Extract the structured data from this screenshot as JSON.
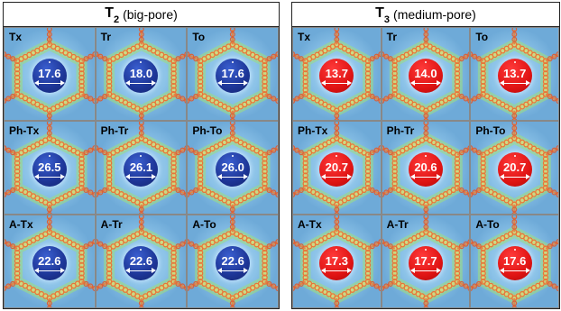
{
  "panels": [
    {
      "title": "T",
      "subscript": "2",
      "description": "(big-pore)",
      "color": "#1d3596",
      "cells": [
        {
          "label": "Tx",
          "value": "17.6"
        },
        {
          "label": "Tr",
          "value": "18.0"
        },
        {
          "label": "To",
          "value": "17.6"
        },
        {
          "label": "Ph-Tx",
          "value": "26.5"
        },
        {
          "label": "Ph-Tr",
          "value": "26.1"
        },
        {
          "label": "Ph-To",
          "value": "26.0"
        },
        {
          "label": "A-Tx",
          "value": "22.6"
        },
        {
          "label": "A-Tr",
          "value": "22.6"
        },
        {
          "label": "A-To",
          "value": "22.6"
        }
      ]
    },
    {
      "title": "T",
      "subscript": "3",
      "description": "(medium-pore)",
      "color": "#e01414",
      "cells": [
        {
          "label": "Tx",
          "value": "13.7"
        },
        {
          "label": "Tr",
          "value": "14.0"
        },
        {
          "label": "To",
          "value": "13.7"
        },
        {
          "label": "Ph-Tx",
          "value": "20.7"
        },
        {
          "label": "Ph-Tr",
          "value": "20.6"
        },
        {
          "label": "Ph-To",
          "value": "20.7"
        },
        {
          "label": "A-Tx",
          "value": "17.3"
        },
        {
          "label": "A-Tr",
          "value": "17.7"
        },
        {
          "label": "A-To",
          "value": "17.6"
        }
      ]
    }
  ]
}
